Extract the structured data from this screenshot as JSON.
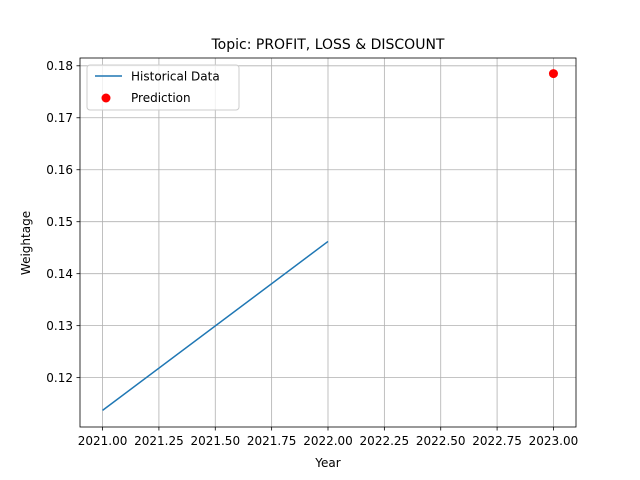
{
  "chart_data": {
    "type": "line",
    "title": "Topic: PROFIT, LOSS & DISCOUNT",
    "xlabel": "Year",
    "ylabel": "Weightage",
    "xlim": [
      2020.9,
      2023.1
    ],
    "ylim": [
      0.1105,
      0.1815
    ],
    "grid": true,
    "legend_position": "top-left",
    "x_ticks": [
      2021.0,
      2021.25,
      2021.5,
      2021.75,
      2022.0,
      2022.25,
      2022.5,
      2022.75,
      2023.0
    ],
    "x_tick_labels": [
      "2021.00",
      "2021.25",
      "2021.50",
      "2021.75",
      "2022.00",
      "2022.25",
      "2022.50",
      "2022.75",
      "2023.00"
    ],
    "y_ticks": [
      0.12,
      0.13,
      0.14,
      0.15,
      0.16,
      0.17,
      0.18
    ],
    "y_tick_labels": [
      "0.12",
      "0.13",
      "0.14",
      "0.15",
      "0.16",
      "0.17",
      "0.18"
    ],
    "series": [
      {
        "name": "Historical Data",
        "kind": "line",
        "color": "#1f77b4",
        "x": [
          2021.0,
          2022.0
        ],
        "y": [
          0.1137,
          0.1462
        ]
      },
      {
        "name": "Prediction",
        "kind": "scatter",
        "color": "#ff0000",
        "x": [
          2023.0
        ],
        "y": [
          0.1785
        ]
      }
    ]
  }
}
